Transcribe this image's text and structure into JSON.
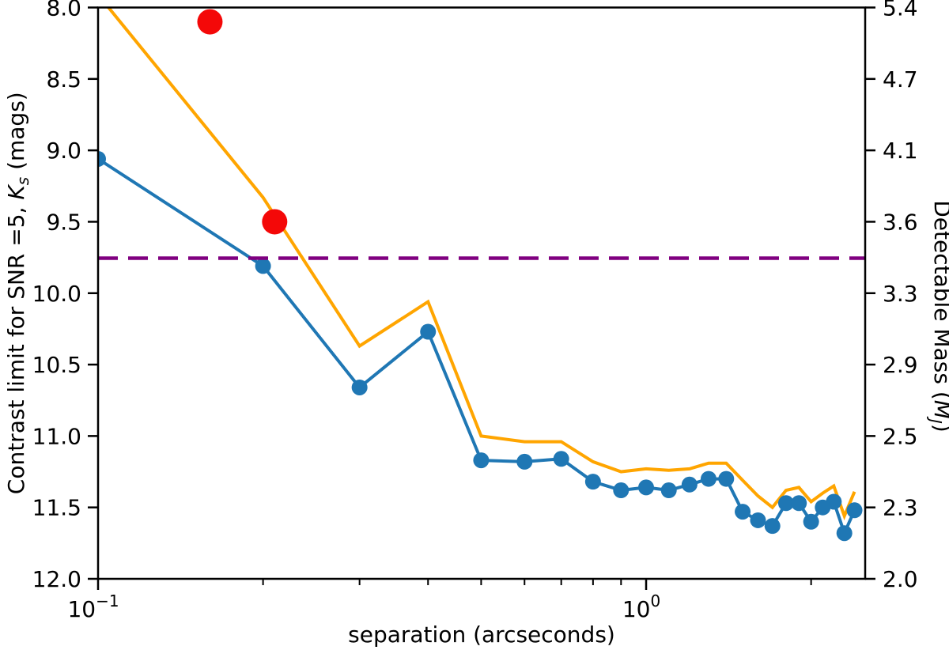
{
  "figure": {
    "background": "#ffffff"
  },
  "chart_data": {
    "type": "line",
    "title": "",
    "xlabel": "separation (arcseconds)",
    "ylabel_left": "Contrast limit for SNR =5,  K_s  (mags)",
    "ylabel_right": "Detectable Mass (M_J)",
    "x_scale": "log",
    "xlim": [
      0.1,
      2.51
    ],
    "ylim_left": [
      8.0,
      12.0
    ],
    "y_axis_inverted": true,
    "grid": false,
    "legend": "none",
    "x": [
      0.1,
      0.2,
      0.3,
      0.4,
      0.5,
      0.6,
      0.7,
      0.8,
      0.9,
      1.0,
      1.1,
      1.2,
      1.3,
      1.4,
      1.5,
      1.6,
      1.7,
      1.8,
      1.9,
      2.0,
      2.1,
      2.2,
      2.3,
      2.4
    ],
    "series": [
      {
        "name": "upper-contrast-curve",
        "color": "#ffa500",
        "marker": "none",
        "linewidth": 4,
        "values": [
          7.91,
          9.33,
          10.37,
          10.06,
          11.0,
          11.04,
          11.04,
          11.18,
          11.25,
          11.23,
          11.24,
          11.23,
          11.19,
          11.19,
          11.31,
          11.42,
          11.5,
          11.38,
          11.36,
          11.46,
          11.4,
          11.35,
          11.56,
          11.39
        ]
      },
      {
        "name": "contrast-curve-with-markers",
        "color": "#1f77b4",
        "marker": "circle",
        "marker_radius": 10,
        "linewidth": 4,
        "values": [
          9.06,
          9.81,
          10.66,
          10.27,
          11.17,
          11.18,
          11.16,
          11.32,
          11.38,
          11.36,
          11.38,
          11.34,
          11.3,
          11.3,
          11.53,
          11.59,
          11.63,
          11.47,
          11.47,
          11.6,
          11.5,
          11.46,
          11.68,
          11.52
        ]
      }
    ],
    "scatter_points": [
      {
        "name": "companion-point-1",
        "x": 0.16,
        "y": 8.1,
        "color": "#f40808",
        "radius": 16
      },
      {
        "name": "companion-point-2",
        "x": 0.21,
        "y": 9.5,
        "color": "#f40808",
        "radius": 16
      }
    ],
    "hline": {
      "y": 9.755,
      "color": "#800080",
      "style": "dashed",
      "linewidth": 4.5,
      "dash": "25 13"
    },
    "left_ticks": [
      {
        "value": 8.0,
        "label": "8.0"
      },
      {
        "value": 8.5,
        "label": "8.5"
      },
      {
        "value": 9.0,
        "label": "9.0"
      },
      {
        "value": 9.5,
        "label": "9.5"
      },
      {
        "value": 10.0,
        "label": "10.0"
      },
      {
        "value": 10.5,
        "label": "10.5"
      },
      {
        "value": 11.0,
        "label": "11.0"
      },
      {
        "value": 11.5,
        "label": "11.5"
      },
      {
        "value": 12.0,
        "label": "12.0"
      }
    ],
    "right_ticks": [
      {
        "value": 8.0,
        "label": "5.4"
      },
      {
        "value": 8.5,
        "label": "4.7"
      },
      {
        "value": 9.0,
        "label": "4.1"
      },
      {
        "value": 9.5,
        "label": "3.6"
      },
      {
        "value": 10.0,
        "label": "3.3"
      },
      {
        "value": 10.5,
        "label": "2.9"
      },
      {
        "value": 11.0,
        "label": "2.5"
      },
      {
        "value": 11.5,
        "label": "2.3"
      },
      {
        "value": 12.0,
        "label": "2.0"
      }
    ],
    "x_major_ticks": [
      {
        "value": 0.1,
        "base": "10",
        "exp": "−1"
      },
      {
        "value": 1.0,
        "base": "10",
        "exp": "0"
      }
    ],
    "x_minor_ticks": [
      0.2,
      0.3,
      0.4,
      0.5,
      0.6,
      0.7,
      0.8,
      0.9,
      2.0
    ],
    "labels": {
      "xlabel": "separation (arcseconds)",
      "ylabel_left_prefix": "Contrast limit for SNR =5,  ",
      "ylabel_left_var": "K",
      "ylabel_left_sub": "s",
      "ylabel_left_suffix": " (mags)",
      "ylabel_right_prefix": "Detectable Mass (",
      "ylabel_right_var": "M",
      "ylabel_right_sub": "J",
      "ylabel_right_suffix": ")"
    },
    "colors": {
      "axis": "#000000",
      "blue_series": "#1f77b4",
      "orange_series": "#ffa500",
      "red_points": "#f40808",
      "threshold": "#800080"
    }
  }
}
